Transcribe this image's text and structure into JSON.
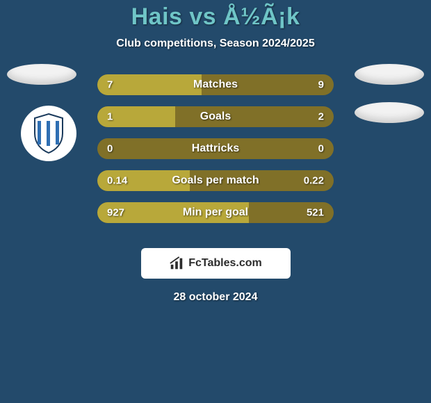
{
  "colors": {
    "background": "#234a6b",
    "title": "#6fc5c7",
    "text_light": "#ffffff",
    "bar_track": "#807028",
    "bar_fill": "#b8a83a",
    "ellipse": "#f2f2f2",
    "logo_bg": "#ffffff",
    "logo_text": "#2c2c2c",
    "shield_stripe": "#2f6fb3",
    "shield_border": "#1a3a5c"
  },
  "header": {
    "title": "Hais vs Å½Ã¡k",
    "subtitle": "Club competitions, Season 2024/2025"
  },
  "bars": [
    {
      "label": "Matches",
      "left": "7",
      "right": "9",
      "fill_pct": 44
    },
    {
      "label": "Goals",
      "left": "1",
      "right": "2",
      "fill_pct": 33
    },
    {
      "label": "Hattricks",
      "left": "0",
      "right": "0",
      "fill_pct": 0
    },
    {
      "label": "Goals per match",
      "left": "0.14",
      "right": "0.22",
      "fill_pct": 39
    },
    {
      "label": "Min per goal",
      "left": "927",
      "right": "521",
      "fill_pct": 64
    }
  ],
  "footer": {
    "logo_text": "FcTables.com",
    "date": "28 october 2024"
  }
}
